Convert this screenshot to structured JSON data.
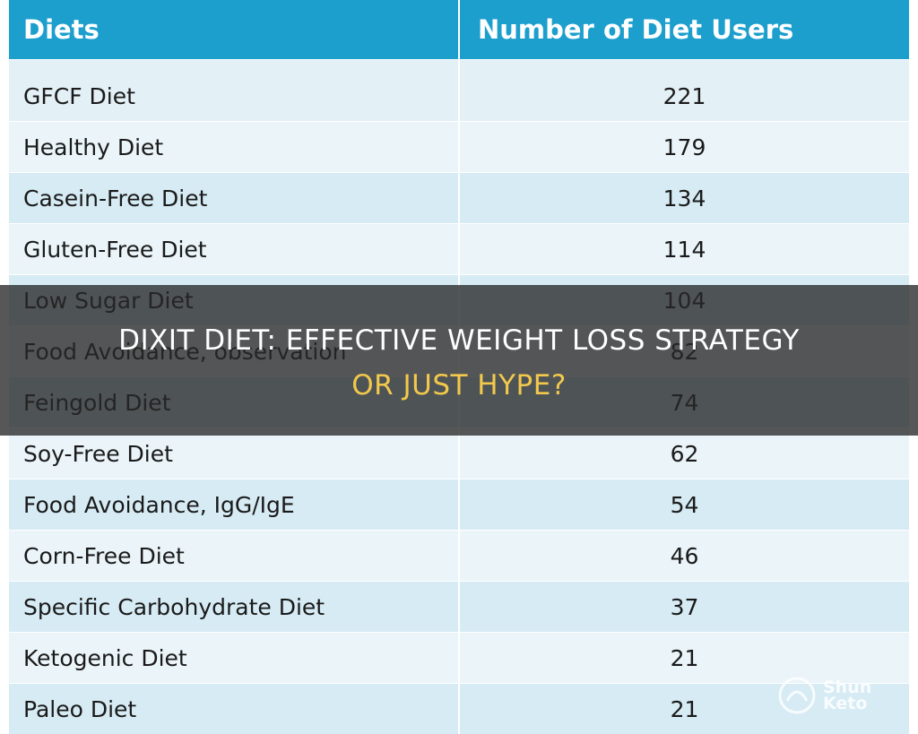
{
  "table": {
    "columns": [
      "Diets",
      "Number of Diet Users"
    ],
    "rows": [
      [
        "GFCF Diet",
        221
      ],
      [
        "Healthy Diet",
        179
      ],
      [
        "Casein-Free Diet",
        134
      ],
      [
        "Gluten-Free Diet",
        114
      ],
      [
        "Low Sugar Diet",
        104
      ],
      [
        "Food Avoidance, observation",
        82
      ],
      [
        "Feingold Diet",
        74
      ],
      [
        "Soy-Free Diet",
        62
      ],
      [
        "Food Avoidance, IgG/IgE",
        54
      ],
      [
        "Corn-Free Diet",
        46
      ],
      [
        "Specific Carbohydrate Diet",
        37
      ],
      [
        "Ketogenic Diet",
        21
      ],
      [
        "Paleo Diet",
        21
      ]
    ]
  },
  "overlay": {
    "title_lines": [
      "DIXIT DIET: EFFECTIVE WEIGHT LOSS STRATEGY",
      "OR JUST HYPE?"
    ]
  },
  "watermark": {
    "lines": [
      "Shun",
      "Keto"
    ]
  }
}
